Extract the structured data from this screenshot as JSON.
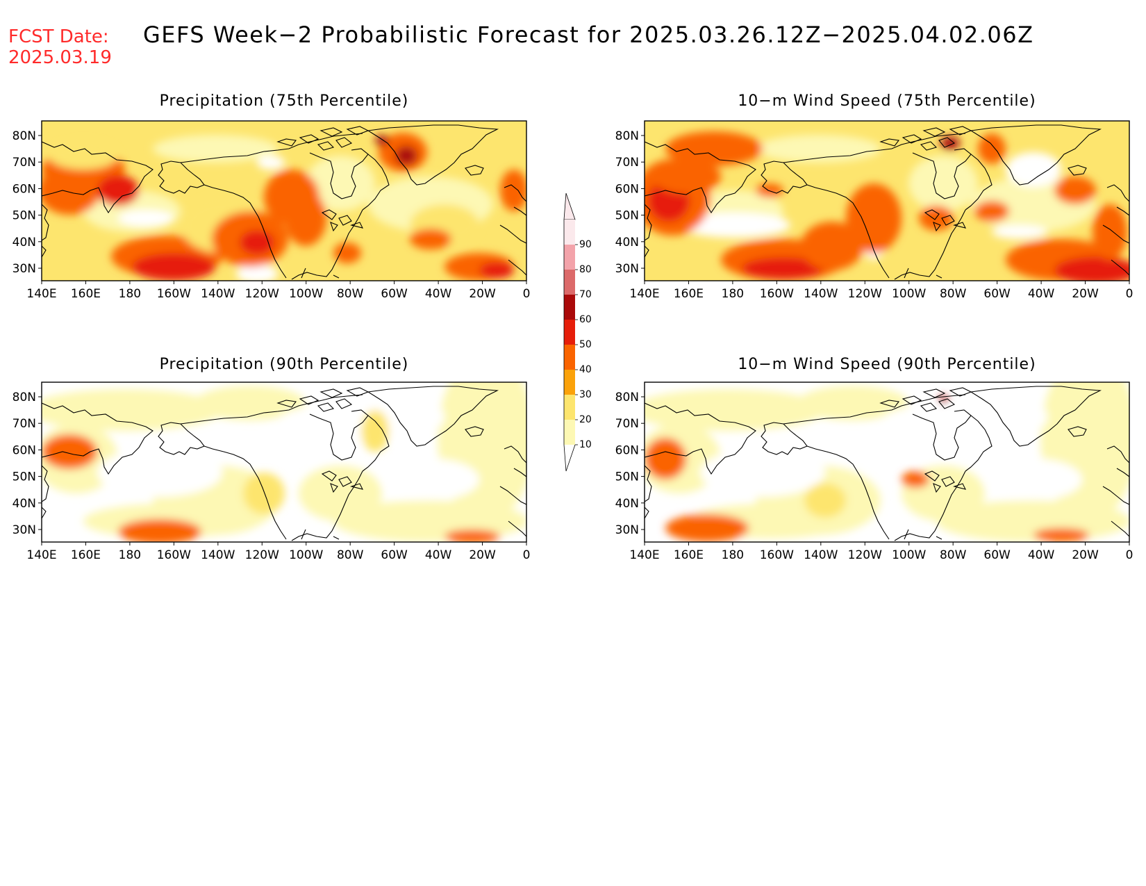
{
  "fcst_date": {
    "label": "FCST Date:",
    "value": "2025.03.19"
  },
  "main_title": "GEFS Week−2 Probabilistic Forecast for 2025.03.26.12Z−2025.04.02.06Z",
  "lat_labels": [
    "80N",
    "70N",
    "60N",
    "50N",
    "40N",
    "30N"
  ],
  "lon_labels": [
    "140E",
    "160E",
    "180",
    "160W",
    "140W",
    "120W",
    "100W",
    "80W",
    "60W",
    "40W",
    "20W",
    "0"
  ],
  "colorbar": {
    "levels": [
      "90",
      "80",
      "70",
      "60",
      "50",
      "40",
      "30",
      "20",
      "10"
    ],
    "colors": [
      "#fbe9ec",
      "#f3a3aa",
      "#dc6a6a",
      "#aa0a0a",
      "#e61e0a",
      "#fa6400",
      "#fba20a",
      "#fde56e",
      "#fdf8b4"
    ]
  },
  "panels": [
    {
      "id": "precip-75",
      "title": "Precipitation (75th Percentile)",
      "intensity": "high",
      "variable": "precip"
    },
    {
      "id": "wind-75",
      "title": "10−m Wind Speed (75th Percentile)",
      "intensity": "high",
      "variable": "wind"
    },
    {
      "id": "precip-90",
      "title": "Precipitation (90th Percentile)",
      "intensity": "low",
      "variable": "precip"
    },
    {
      "id": "wind-90",
      "title": "10−m Wind Speed (90th Percentile)",
      "intensity": "low",
      "variable": "wind"
    }
  ]
}
